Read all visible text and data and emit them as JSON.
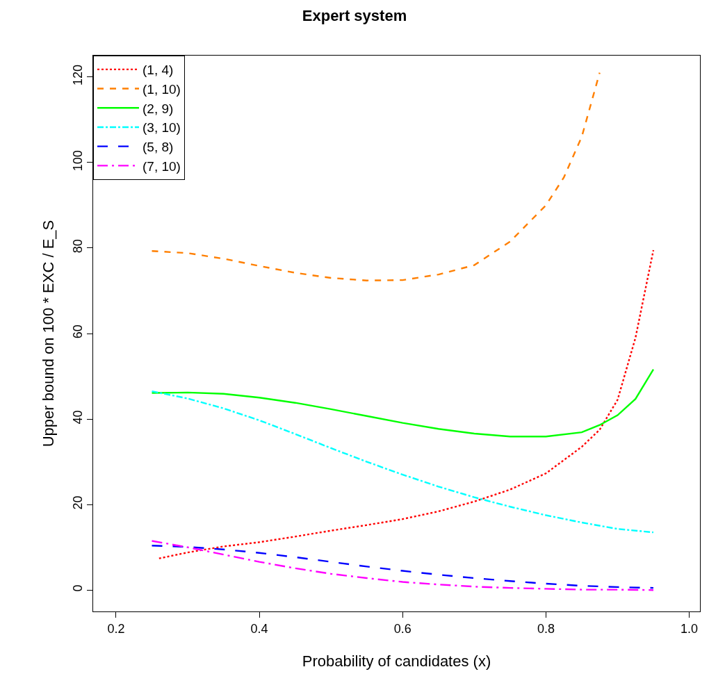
{
  "chart_data": {
    "type": "line",
    "title": "Expert system",
    "xlabel": "Probability of candidates (x)",
    "ylabel": "Upper bound on 100 * EXC / E_S",
    "xlim": [
      0.168,
      1.015
    ],
    "ylim": [
      -5,
      125
    ],
    "xticks": [
      0.2,
      0.4,
      0.6,
      0.8,
      {
        "value": 1.0,
        "label": "1.0"
      }
    ],
    "yticks": [
      0,
      20,
      40,
      60,
      80,
      100,
      120
    ],
    "legend": "top left",
    "series": [
      {
        "name": "(1, 4)",
        "color": "#ff0000",
        "line_style": "dotted",
        "x": [
          0.26,
          0.3,
          0.35,
          0.4,
          0.45,
          0.5,
          0.55,
          0.6,
          0.65,
          0.7,
          0.75,
          0.8,
          0.85,
          0.875,
          0.9,
          0.925,
          0.95
        ],
        "values": [
          7.4,
          8.8,
          10.2,
          11.2,
          12.5,
          13.9,
          15.2,
          16.6,
          18.4,
          20.7,
          23.5,
          27.3,
          33.5,
          37.5,
          44.5,
          59,
          79.5
        ]
      },
      {
        "name": "(1, 10)",
        "color": "#ff7f00",
        "line_style": "dashed",
        "x": [
          0.25,
          0.3,
          0.35,
          0.4,
          0.45,
          0.5,
          0.55,
          0.6,
          0.65,
          0.7,
          0.75,
          0.8,
          0.825,
          0.85,
          0.875
        ],
        "values": [
          79.3,
          78.8,
          77.5,
          75.8,
          74.2,
          73,
          72.4,
          72.5,
          73.8,
          76,
          81.5,
          90,
          96.5,
          106,
          121
        ]
      },
      {
        "name": "(2, 9)",
        "color": "#00ff00",
        "line_style": "solid",
        "x": [
          0.25,
          0.3,
          0.35,
          0.4,
          0.45,
          0.5,
          0.55,
          0.6,
          0.65,
          0.7,
          0.75,
          0.8,
          0.85,
          0.875,
          0.9,
          0.925,
          0.95
        ],
        "values": [
          46.1,
          46.2,
          45.9,
          45.0,
          43.8,
          42.3,
          40.7,
          39.1,
          37.7,
          36.6,
          35.9,
          35.9,
          36.9,
          38.6,
          40.9,
          44.7,
          51.6
        ]
      },
      {
        "name": "(3, 10)",
        "color": "#00ffff",
        "line_style": "dashdot",
        "x": [
          0.25,
          0.3,
          0.35,
          0.4,
          0.45,
          0.5,
          0.55,
          0.6,
          0.65,
          0.7,
          0.75,
          0.8,
          0.85,
          0.9,
          0.95
        ],
        "values": [
          46.5,
          44.8,
          42.5,
          39.7,
          36.5,
          33.2,
          30,
          27,
          24.2,
          21.7,
          19.5,
          17.5,
          15.8,
          14.3,
          13.5
        ]
      },
      {
        "name": "(5, 8)",
        "color": "#0000ff",
        "line_style": "longdash",
        "x": [
          0.25,
          0.3,
          0.35,
          0.4,
          0.45,
          0.5,
          0.55,
          0.6,
          0.65,
          0.7,
          0.75,
          0.8,
          0.85,
          0.9,
          0.95
        ],
        "values": [
          10.4,
          10.1,
          9.5,
          8.7,
          7.7,
          6.6,
          5.5,
          4.5,
          3.6,
          2.8,
          2.1,
          1.5,
          1.0,
          0.7,
          0.5
        ]
      },
      {
        "name": "(7, 10)",
        "color": "#ff00ff",
        "line_style": "longdashdot",
        "x": [
          0.25,
          0.3,
          0.35,
          0.4,
          0.45,
          0.5,
          0.55,
          0.6,
          0.65,
          0.7,
          0.75,
          0.8,
          0.85,
          0.9,
          0.95
        ],
        "values": [
          11.5,
          10.0,
          8.3,
          6.6,
          5.1,
          3.8,
          2.8,
          1.9,
          1.3,
          0.8,
          0.5,
          0.3,
          0.1,
          0.1,
          0.0
        ]
      }
    ]
  }
}
